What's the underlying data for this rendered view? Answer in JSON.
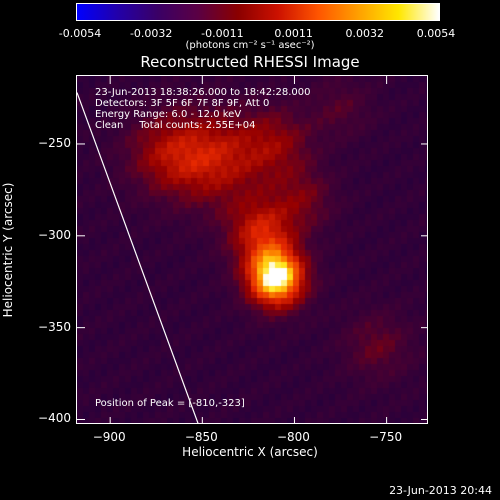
{
  "colorbar": {
    "ticks": [
      "-0.0054",
      "-0.0032",
      "-0.0011",
      "0.0011",
      "0.0032",
      "0.0054"
    ],
    "units": "(photons cm⁻² s⁻¹ asec⁻²)",
    "colors": [
      "#0000ff",
      "#2200aa",
      "#3a0066",
      "#5a0044",
      "#8a0000",
      "#cc1100",
      "#ff5500",
      "#ffa000",
      "#ffe700",
      "#ffffff"
    ]
  },
  "chart_data": {
    "type": "heatmap",
    "title": "Reconstructed RHESSI Image",
    "xlabel": "Heliocentric X (arcsec)",
    "ylabel": "Heliocentric Y (arcsec)",
    "xlim": [
      -918,
      -727
    ],
    "ylim": [
      -403,
      -213
    ],
    "xticks": [
      -900,
      -850,
      -800,
      -750
    ],
    "yticks": [
      -250,
      -300,
      -350,
      -400
    ],
    "peak": {
      "x": -810,
      "y": -323
    },
    "limb_line": [
      [
        -918,
        -222
      ],
      [
        -852,
        -403
      ]
    ],
    "sources": [
      {
        "x": -810,
        "y": -323,
        "intensity": 1.0,
        "sigma": 11
      },
      {
        "x": -818,
        "y": -298,
        "intensity": 0.45,
        "sigma": 13
      },
      {
        "x": -843,
        "y": -258,
        "intensity": 0.4,
        "sigma": 18
      },
      {
        "x": -870,
        "y": -255,
        "intensity": 0.3,
        "sigma": 16
      },
      {
        "x": -810,
        "y": -250,
        "intensity": 0.28,
        "sigma": 14
      },
      {
        "x": -795,
        "y": -280,
        "intensity": 0.22,
        "sigma": 12
      },
      {
        "x": -755,
        "y": -360,
        "intensity": 0.2,
        "sigma": 13
      },
      {
        "x": -775,
        "y": -230,
        "intensity": 0.15,
        "sigma": 12
      }
    ]
  },
  "annotations": {
    "time": "23-Jun-2013 18:38:26.000 to 18:42:28.000",
    "detectors": "Detectors: 3F 5F 6F 7F 8F 9F, Att 0",
    "energy": "Energy Range: 6.0 - 12.0 keV",
    "clean": "Clean     Total counts: 2.55E+04",
    "peak_text": "Position of Peak = [-810,-323]"
  },
  "timestamp": "23-Jun-2013 20:44"
}
